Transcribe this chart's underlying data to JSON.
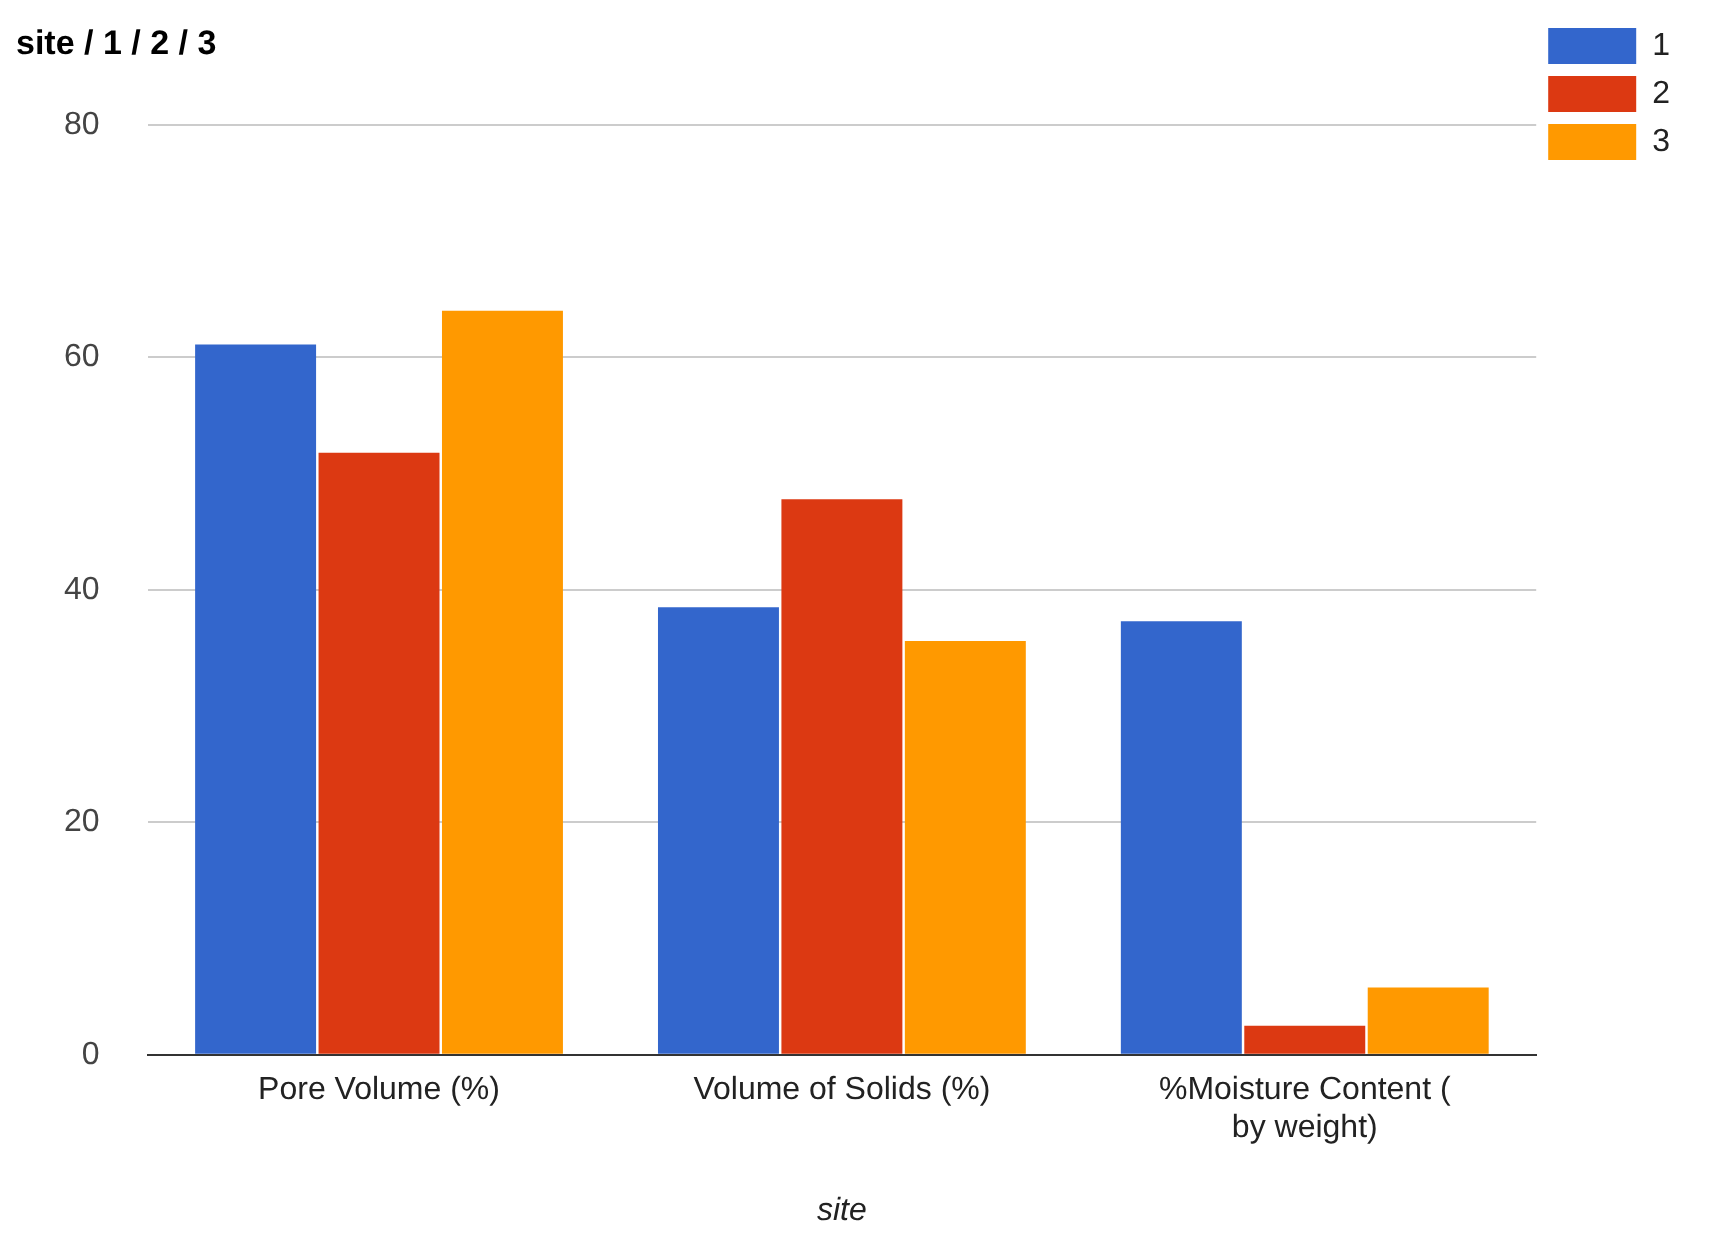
{
  "chart_data": {
    "type": "bar",
    "title": "site / 1 / 2 / 3",
    "xlabel": "site",
    "categories": [
      "Pore Volume (%)",
      "Volume of Solids (%)",
      "%Moisture Content ( by weight)"
    ],
    "series": [
      {
        "name": "1",
        "color": "#3366cc",
        "values": [
          61.1,
          38.5,
          37.3
        ]
      },
      {
        "name": "2",
        "color": "#dc3912",
        "values": [
          51.8,
          47.8,
          2.5
        ]
      },
      {
        "name": "3",
        "color": "#ff9900",
        "values": [
          64.0,
          35.6,
          5.8
        ]
      }
    ],
    "ylim": [
      0,
      80
    ],
    "yticks": [
      0,
      20,
      40,
      60,
      80
    ],
    "grid": "y",
    "legend": "top right"
  }
}
